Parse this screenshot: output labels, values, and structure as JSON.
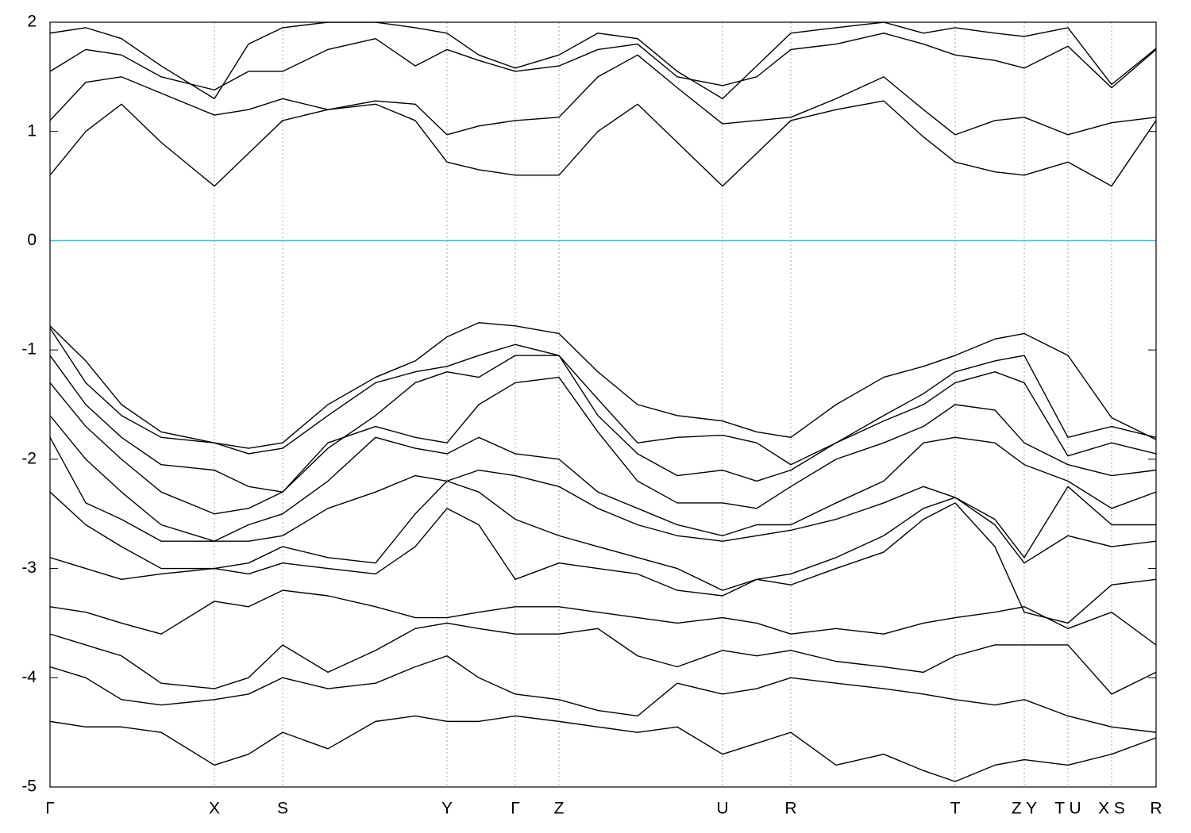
{
  "chart_data": {
    "type": "line",
    "x": [
      0,
      45,
      90,
      140,
      207,
      250,
      293,
      350,
      410,
      460,
      500,
      540,
      586,
      641,
      690,
      740,
      790,
      847,
      890,
      933,
      990,
      1050,
      1100,
      1140,
      1190,
      1227,
      1282,
      1337,
      1393
    ],
    "xlim": [
      0,
      1393
    ],
    "xticks": [
      {
        "value": 0,
        "label": "Γ"
      },
      {
        "value": 207,
        "label": "X"
      },
      {
        "value": 293,
        "label": "S"
      },
      {
        "value": 500,
        "label": "Y"
      },
      {
        "value": 586,
        "label": "Γ"
      },
      {
        "value": 641,
        "label": "Z"
      },
      {
        "value": 847,
        "label": "U"
      },
      {
        "value": 933,
        "label": "R"
      },
      {
        "value": 1140,
        "label": "T"
      },
      {
        "value": 1227,
        "label": "Z Y"
      },
      {
        "value": 1282,
        "label": "T U"
      },
      {
        "value": 1337,
        "label": "X S"
      },
      {
        "value": 1393,
        "label": "R"
      }
    ],
    "ylim": [
      -5,
      2
    ],
    "yticks": [
      -5,
      -4,
      -3,
      -2,
      -1,
      0,
      1,
      2
    ],
    "grid": true,
    "hline": 0,
    "hline_color": "#4bb0c8",
    "series": [
      {
        "color": "#000000",
        "values": [
          0.6,
          1.0,
          1.25,
          0.9,
          0.5,
          0.8,
          1.1,
          1.2,
          1.25,
          1.1,
          0.72,
          0.65,
          0.6,
          0.6,
          1.0,
          1.25,
          0.9,
          0.5,
          0.8,
          1.1,
          1.2,
          1.28,
          0.95,
          0.72,
          0.63,
          0.6,
          0.72,
          0.5,
          1.1
        ]
      },
      {
        "color": "#000000",
        "values": [
          1.1,
          1.45,
          1.5,
          1.35,
          1.15,
          1.2,
          1.3,
          1.2,
          1.28,
          1.25,
          0.97,
          1.05,
          1.1,
          1.13,
          1.5,
          1.7,
          1.4,
          1.07,
          1.1,
          1.13,
          1.3,
          1.5,
          1.2,
          0.97,
          1.1,
          1.13,
          0.97,
          1.08,
          1.13
        ]
      },
      {
        "color": "#000000",
        "values": [
          1.55,
          1.75,
          1.7,
          1.5,
          1.38,
          1.55,
          1.55,
          1.75,
          1.85,
          1.6,
          1.75,
          1.65,
          1.55,
          1.6,
          1.75,
          1.8,
          1.5,
          1.42,
          1.5,
          1.75,
          1.8,
          1.9,
          1.8,
          1.7,
          1.65,
          1.58,
          1.78,
          1.4,
          1.75
        ]
      },
      {
        "color": "#000000",
        "values": [
          1.9,
          1.95,
          1.85,
          1.6,
          1.3,
          1.8,
          1.95,
          2.0,
          2.0,
          1.95,
          1.9,
          1.7,
          1.58,
          1.7,
          1.9,
          1.85,
          1.55,
          1.3,
          1.6,
          1.9,
          1.95,
          2.0,
          1.9,
          1.95,
          1.9,
          1.87,
          1.95,
          1.43,
          1.76
        ]
      },
      {
        "color": "#000000",
        "values": [
          -0.78,
          -1.1,
          -1.5,
          -1.75,
          -1.85,
          -1.9,
          -1.85,
          -1.5,
          -1.25,
          -1.1,
          -0.88,
          -0.75,
          -0.78,
          -0.85,
          -1.2,
          -1.5,
          -1.6,
          -1.65,
          -1.75,
          -1.8,
          -1.5,
          -1.25,
          -1.15,
          -1.05,
          -0.9,
          -0.85,
          -1.05,
          -1.62,
          -1.82
        ]
      },
      {
        "color": "#000000",
        "values": [
          -0.8,
          -1.3,
          -1.6,
          -1.8,
          -1.85,
          -1.95,
          -1.9,
          -1.6,
          -1.3,
          -1.2,
          -1.15,
          -1.05,
          -0.95,
          -1.05,
          -1.45,
          -1.85,
          -1.8,
          -1.78,
          -1.85,
          -2.05,
          -1.85,
          -1.6,
          -1.4,
          -1.2,
          -1.1,
          -1.05,
          -1.8,
          -1.7,
          -1.8
        ]
      },
      {
        "color": "#000000",
        "values": [
          -1.05,
          -1.5,
          -1.8,
          -2.05,
          -2.1,
          -2.25,
          -2.3,
          -1.9,
          -1.6,
          -1.3,
          -1.2,
          -1.25,
          -1.05,
          -1.05,
          -1.6,
          -1.95,
          -2.15,
          -2.1,
          -2.2,
          -2.1,
          -1.85,
          -1.65,
          -1.5,
          -1.3,
          -1.2,
          -1.3,
          -1.97,
          -1.85,
          -1.95
        ]
      },
      {
        "color": "#000000",
        "values": [
          -1.3,
          -1.7,
          -2.0,
          -2.3,
          -2.5,
          -2.45,
          -2.3,
          -1.85,
          -1.7,
          -1.8,
          -1.85,
          -1.5,
          -1.3,
          -1.25,
          -1.75,
          -2.2,
          -2.4,
          -2.4,
          -2.45,
          -2.25,
          -2.0,
          -1.85,
          -1.7,
          -1.5,
          -1.55,
          -1.85,
          -2.05,
          -2.15,
          -2.1
        ]
      },
      {
        "color": "#000000",
        "values": [
          -1.6,
          -2.0,
          -2.3,
          -2.6,
          -2.75,
          -2.6,
          -2.5,
          -2.2,
          -1.8,
          -1.9,
          -1.95,
          -1.8,
          -1.95,
          -2.0,
          -2.3,
          -2.45,
          -2.6,
          -2.7,
          -2.6,
          -2.6,
          -2.4,
          -2.2,
          -1.85,
          -1.8,
          -1.85,
          -2.05,
          -2.2,
          -2.45,
          -2.3
        ]
      },
      {
        "color": "#000000",
        "values": [
          -1.8,
          -2.4,
          -2.55,
          -2.75,
          -2.75,
          -2.75,
          -2.7,
          -2.45,
          -2.3,
          -2.15,
          -2.2,
          -2.1,
          -2.15,
          -2.25,
          -2.45,
          -2.6,
          -2.7,
          -2.75,
          -2.7,
          -2.65,
          -2.55,
          -2.4,
          -2.25,
          -2.35,
          -2.55,
          -2.9,
          -2.25,
          -2.6,
          -2.6
        ]
      },
      {
        "color": "#000000",
        "values": [
          -2.3,
          -2.6,
          -2.8,
          -3.0,
          -3.0,
          -2.95,
          -2.8,
          -2.9,
          -2.95,
          -2.5,
          -2.2,
          -2.3,
          -2.55,
          -2.7,
          -2.8,
          -2.9,
          -3.0,
          -3.2,
          -3.1,
          -3.05,
          -2.9,
          -2.7,
          -2.45,
          -2.35,
          -2.6,
          -2.95,
          -2.7,
          -2.8,
          -2.75
        ]
      },
      {
        "color": "#000000",
        "values": [
          -2.9,
          -3.0,
          -3.1,
          -3.05,
          -3.0,
          -3.05,
          -2.95,
          -3.0,
          -3.05,
          -2.8,
          -2.45,
          -2.6,
          -3.1,
          -2.95,
          -3.0,
          -3.05,
          -3.2,
          -3.25,
          -3.1,
          -3.15,
          -3.0,
          -2.85,
          -2.55,
          -2.4,
          -2.8,
          -3.4,
          -3.5,
          -3.15,
          -3.1
        ]
      },
      {
        "color": "#000000",
        "values": [
          -3.35,
          -3.4,
          -3.5,
          -3.6,
          -3.3,
          -3.35,
          -3.2,
          -3.25,
          -3.35,
          -3.45,
          -3.45,
          -3.4,
          -3.35,
          -3.35,
          -3.4,
          -3.45,
          -3.5,
          -3.45,
          -3.5,
          -3.6,
          -3.55,
          -3.6,
          -3.5,
          -3.45,
          -3.4,
          -3.35,
          -3.55,
          -3.4,
          -3.7
        ]
      },
      {
        "color": "#000000",
        "values": [
          -3.6,
          -3.7,
          -3.8,
          -4.05,
          -4.1,
          -4.0,
          -3.7,
          -3.95,
          -3.75,
          -3.55,
          -3.5,
          -3.55,
          -3.6,
          -3.6,
          -3.55,
          -3.8,
          -3.9,
          -3.75,
          -3.8,
          -3.75,
          -3.85,
          -3.9,
          -3.95,
          -3.8,
          -3.7,
          -3.7,
          -3.7,
          -4.15,
          -3.95
        ]
      },
      {
        "color": "#000000",
        "values": [
          -3.9,
          -4.0,
          -4.2,
          -4.25,
          -4.2,
          -4.15,
          -4.0,
          -4.1,
          -4.05,
          -3.9,
          -3.8,
          -4.0,
          -4.15,
          -4.2,
          -4.3,
          -4.35,
          -4.05,
          -4.15,
          -4.1,
          -4.0,
          -4.05,
          -4.1,
          -4.15,
          -4.2,
          -4.25,
          -4.2,
          -4.35,
          -4.45,
          -4.5
        ]
      },
      {
        "color": "#000000",
        "values": [
          -4.4,
          -4.45,
          -4.45,
          -4.5,
          -4.8,
          -4.7,
          -4.5,
          -4.65,
          -4.4,
          -4.35,
          -4.4,
          -4.4,
          -4.35,
          -4.4,
          -4.45,
          -4.5,
          -4.45,
          -4.7,
          -4.6,
          -4.5,
          -4.8,
          -4.7,
          -4.85,
          -4.95,
          -4.8,
          -4.75,
          -4.8,
          -4.7,
          -4.55
        ]
      }
    ]
  }
}
